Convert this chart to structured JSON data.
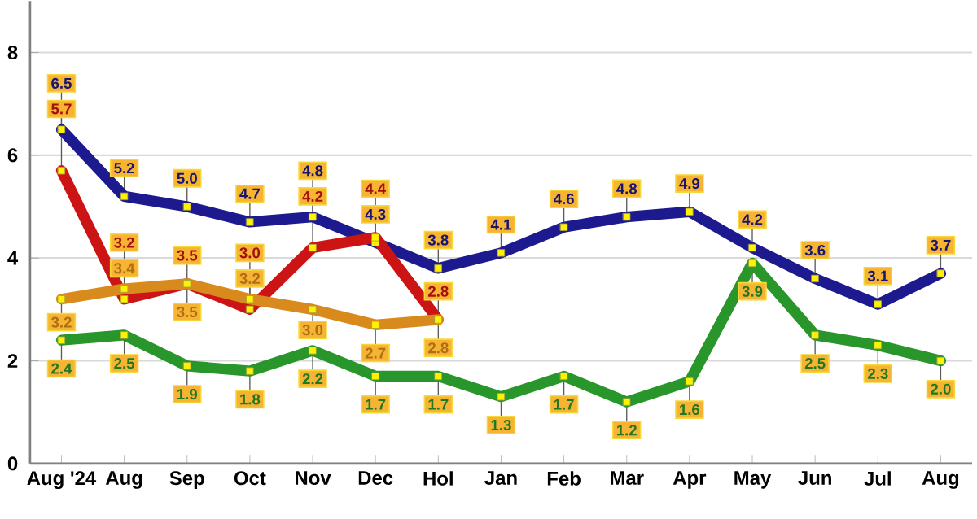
{
  "chart_data": {
    "type": "line",
    "categories": [
      "Aug '24",
      "Aug",
      "Sep",
      "Oct",
      "Nov",
      "Dec",
      "Hol",
      "Jan",
      "Feb",
      "Mar",
      "Apr",
      "May",
      "Jun",
      "Jul",
      "Aug"
    ],
    "series": [
      {
        "color": "#1c1a8e",
        "values": [
          6.5,
          5.2,
          5.0,
          4.7,
          4.8,
          4.3,
          3.8,
          4.1,
          4.6,
          4.8,
          4.9,
          4.2,
          3.6,
          3.1,
          3.7
        ],
        "value_labels": [
          "6.5",
          "5.2",
          "5.0",
          "4.7",
          "4.8",
          "4.3",
          "3.8",
          "4.1",
          "4.6",
          "4.8",
          "4.9",
          "4.2",
          "3.6",
          "3.1",
          "3.7"
        ]
      },
      {
        "color": "#cc1414",
        "values": [
          5.7,
          3.2,
          3.5,
          3.0,
          4.2,
          4.4,
          2.8,
          null,
          null,
          null,
          null,
          null,
          null,
          null,
          null
        ],
        "value_labels": [
          "5.7",
          "3.2",
          "3.5",
          "3.0",
          "4.2",
          "4.4",
          "2.8",
          null,
          null,
          null,
          null,
          null,
          null,
          null,
          null
        ]
      },
      {
        "color": "#d98a1c",
        "values": [
          3.2,
          3.4,
          3.5,
          3.2,
          3.0,
          2.7,
          2.8,
          null,
          null,
          null,
          null,
          null,
          null,
          null,
          null
        ],
        "value_labels": [
          "3.2",
          "3.4",
          "3.5",
          "3.2",
          "3.0",
          "2.7",
          "2.8",
          null,
          null,
          null,
          null,
          null,
          null,
          null,
          null
        ]
      },
      {
        "color": "#28962a",
        "values": [
          2.4,
          2.5,
          1.9,
          1.8,
          2.2,
          1.7,
          1.7,
          1.3,
          1.7,
          1.2,
          1.6,
          3.9,
          2.5,
          2.3,
          2.0
        ],
        "value_labels": [
          "2.4",
          "2.5",
          "1.9",
          "1.8",
          "2.2",
          "1.7",
          "1.7",
          "1.3",
          "1.7",
          "1.2",
          "1.6",
          "3.9",
          "2.5",
          "2.3",
          "2.0"
        ]
      }
    ],
    "ylim": [
      0,
      9
    ],
    "yticks": [
      0,
      2,
      4,
      6,
      8
    ],
    "grid": "y",
    "marker": "square",
    "line_style": "solid"
  }
}
